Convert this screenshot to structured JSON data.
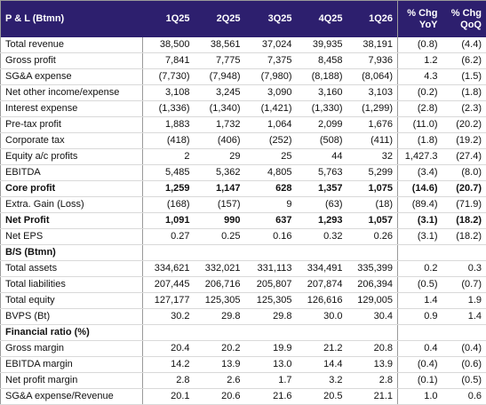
{
  "header": [
    "P & L (Btmn)",
    "1Q25",
    "2Q25",
    "3Q25",
    "4Q25",
    "1Q26",
    [
      "% Chg",
      "YoY"
    ],
    [
      "% Chg",
      "QoQ"
    ]
  ],
  "sections": [
    {
      "rows": [
        {
          "label": "Total revenue",
          "values": [
            "38,500",
            "38,561",
            "37,024",
            "39,935",
            "38,191",
            "(0.8)",
            "(4.4)"
          ]
        },
        {
          "label": "Gross profit",
          "values": [
            "7,841",
            "7,775",
            "7,375",
            "8,458",
            "7,936",
            "1.2",
            "(6.2)"
          ]
        },
        {
          "label": "SG&A expense",
          "values": [
            "(7,730)",
            "(7,948)",
            "(7,980)",
            "(8,188)",
            "(8,064)",
            "4.3",
            "(1.5)"
          ]
        },
        {
          "label": "Net other income/expense",
          "values": [
            "3,108",
            "3,245",
            "3,090",
            "3,160",
            "3,103",
            "(0.2)",
            "(1.8)"
          ]
        },
        {
          "label": "Interest expense",
          "values": [
            "(1,336)",
            "(1,340)",
            "(1,421)",
            "(1,330)",
            "(1,299)",
            "(2.8)",
            "(2.3)"
          ]
        },
        {
          "label": "Pre-tax profit",
          "values": [
            "1,883",
            "1,732",
            "1,064",
            "2,099",
            "1,676",
            "(11.0)",
            "(20.2)"
          ]
        },
        {
          "label": "Corporate tax",
          "values": [
            "(418)",
            "(406)",
            "(252)",
            "(508)",
            "(411)",
            "(1.8)",
            "(19.2)"
          ]
        },
        {
          "label": "Equity a/c profits",
          "values": [
            "2",
            "29",
            "25",
            "44",
            "32",
            "1,427.3",
            "(27.4)"
          ]
        },
        {
          "label": "EBITDA",
          "values": [
            "5,485",
            "5,362",
            "4,805",
            "5,763",
            "5,299",
            "(3.4)",
            "(8.0)"
          ]
        },
        {
          "label": "Core profit",
          "bold": true,
          "values": [
            "1,259",
            "1,147",
            "628",
            "1,357",
            "1,075",
            "(14.6)",
            "(20.7)"
          ]
        },
        {
          "label": "Extra. Gain (Loss)",
          "values": [
            "(168)",
            "(157)",
            "9",
            "(63)",
            "(18)",
            "(89.4)",
            "(71.9)"
          ]
        },
        {
          "label": "Net Profit",
          "bold": true,
          "values": [
            "1,091",
            "990",
            "637",
            "1,293",
            "1,057",
            "(3.1)",
            "(18.2)"
          ]
        },
        {
          "label": "Net EPS",
          "values": [
            "0.27",
            "0.25",
            "0.16",
            "0.32",
            "0.26",
            "(3.1)",
            "(18.2)"
          ]
        }
      ]
    },
    {
      "title": "B/S (Btmn)",
      "rows": [
        {
          "label": "Total assets",
          "values": [
            "334,621",
            "332,021",
            "331,113",
            "334,491",
            "335,399",
            "0.2",
            "0.3"
          ]
        },
        {
          "label": "Total liabilities",
          "values": [
            "207,445",
            "206,716",
            "205,807",
            "207,874",
            "206,394",
            "(0.5)",
            "(0.7)"
          ]
        },
        {
          "label": "Total equity",
          "values": [
            "127,177",
            "125,305",
            "125,305",
            "126,616",
            "129,005",
            "1.4",
            "1.9"
          ]
        },
        {
          "label": "BVPS (Bt)",
          "values": [
            "30.2",
            "29.8",
            "29.8",
            "30.0",
            "30.4",
            "0.9",
            "1.4"
          ]
        }
      ]
    },
    {
      "title": "Financial ratio (%)",
      "rows": [
        {
          "label": "Gross margin",
          "values": [
            "20.4",
            "20.2",
            "19.9",
            "21.2",
            "20.8",
            "0.4",
            "(0.4)"
          ]
        },
        {
          "label": "EBITDA margin",
          "values": [
            "14.2",
            "13.9",
            "13.0",
            "14.4",
            "13.9",
            "(0.4)",
            "(0.6)"
          ]
        },
        {
          "label": "Net profit margin",
          "values": [
            "2.8",
            "2.6",
            "1.7",
            "3.2",
            "2.8",
            "(0.1)",
            "(0.5)"
          ]
        },
        {
          "label": "SG&A expense/Revenue",
          "values": [
            "20.1",
            "20.6",
            "21.6",
            "20.5",
            "21.1",
            "1.0",
            "0.6"
          ]
        }
      ]
    }
  ]
}
